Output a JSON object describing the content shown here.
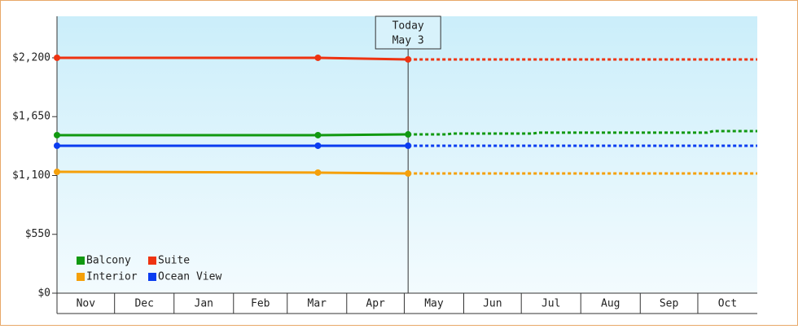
{
  "chart_data": {
    "type": "line",
    "xlim": [
      0,
      365
    ],
    "xticks": [
      {
        "value": 0,
        "label": "Nov"
      },
      {
        "value": 30,
        "label": "Dec"
      },
      {
        "value": 61,
        "label": "Jan"
      },
      {
        "value": 92,
        "label": "Feb"
      },
      {
        "value": 120,
        "label": "Mar"
      },
      {
        "value": 151,
        "label": "Apr"
      },
      {
        "value": 181,
        "label": "May"
      },
      {
        "value": 212,
        "label": "Jun"
      },
      {
        "value": 242,
        "label": "Jul"
      },
      {
        "value": 273,
        "label": "Aug"
      },
      {
        "value": 304,
        "label": "Sep"
      },
      {
        "value": 334,
        "label": "Oct"
      }
    ],
    "ylim": [
      0,
      2588
    ],
    "yticks": [
      {
        "value": 0,
        "label": "$0"
      },
      {
        "value": 550,
        "label": "$550"
      },
      {
        "value": 1100,
        "label": "$1,100"
      },
      {
        "value": 1650,
        "label": "$1,650"
      },
      {
        "value": 2200,
        "label": "$2,200"
      }
    ],
    "today": {
      "x": 183,
      "label": "Today",
      "date": "May 3"
    },
    "series": [
      {
        "name": "Balcony",
        "color": "#119911",
        "x": [
          0,
          136,
          183
        ],
        "values": [
          1477,
          1477,
          1484
        ],
        "projection": {
          "x": [
            183,
            203,
            206,
            248,
            251,
            339,
            342,
            365
          ],
          "values": [
            1484,
            1484,
            1492,
            1492,
            1500,
            1500,
            1515,
            1515
          ]
        }
      },
      {
        "name": "Suite",
        "color": "#ee3311",
        "x": [
          0,
          136,
          183
        ],
        "values": [
          2200,
          2200,
          2185
        ],
        "projection": {
          "x": [
            183,
            365
          ],
          "values": [
            2185,
            2185
          ]
        }
      },
      {
        "name": "Interior",
        "color": "#f5a00a",
        "x": [
          0,
          136,
          183
        ],
        "values": [
          1134,
          1127,
          1119
        ],
        "projection": {
          "x": [
            183,
            365
          ],
          "values": [
            1119,
            1119
          ]
        }
      },
      {
        "name": "Ocean View",
        "color": "#0a3cf0",
        "x": [
          0,
          136,
          183
        ],
        "values": [
          1378,
          1378,
          1378
        ],
        "projection": {
          "x": [
            183,
            365
          ],
          "values": [
            1378,
            1378
          ]
        }
      }
    ]
  }
}
